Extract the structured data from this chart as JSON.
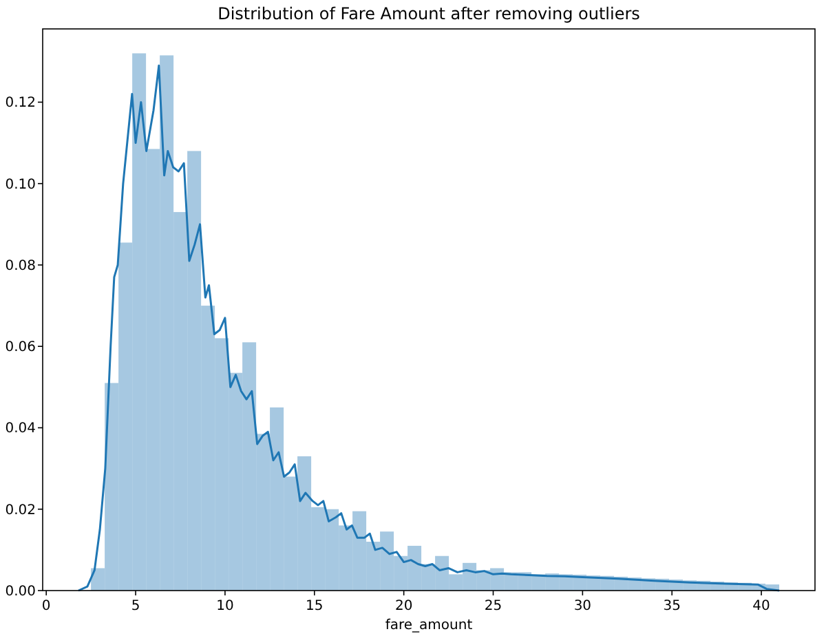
{
  "chart_data": {
    "type": "histogram",
    "title": "Distribution of Fare Amount after removing outliers",
    "xlabel": "fare_amount",
    "bins": [
      2.5,
      3.27,
      4.04,
      4.81,
      5.58,
      6.35,
      7.12,
      7.89,
      8.66,
      9.43,
      10.2,
      10.97,
      11.74,
      12.51,
      13.28,
      14.05,
      14.82,
      15.59,
      16.36,
      17.13,
      17.9,
      18.67,
      19.44,
      20.21,
      20.98,
      21.75,
      22.52,
      23.29,
      24.06,
      24.83,
      25.6,
      26.37,
      27.14,
      27.91,
      28.68,
      29.45,
      30.22,
      30.99,
      31.76,
      32.53,
      33.3,
      34.07,
      34.84,
      35.61,
      36.38,
      37.15,
      37.92,
      38.69,
      39.46,
      40.23,
      41.0
    ],
    "values": [
      0.0055,
      0.051,
      0.0855,
      0.132,
      0.1085,
      0.1315,
      0.093,
      0.108,
      0.07,
      0.062,
      0.0535,
      0.061,
      0.0385,
      0.045,
      0.028,
      0.033,
      0.0205,
      0.02,
      0.016,
      0.0195,
      0.012,
      0.0145,
      0.0085,
      0.011,
      0.0065,
      0.0085,
      0.004,
      0.0068,
      0.005,
      0.0055,
      0.0045,
      0.0045,
      0.004,
      0.0042,
      0.004,
      0.0039,
      0.0037,
      0.0036,
      0.0034,
      0.0032,
      0.003,
      0.0029,
      0.0027,
      0.0025,
      0.0024,
      0.0022,
      0.002,
      0.0019,
      0.0017,
      0.0015
    ],
    "color": "#a6c8e1",
    "series": [
      {
        "type": "line",
        "color": "#1f77b4",
        "x": [
          1.8,
          2.3,
          2.7,
          3.0,
          3.3,
          3.6,
          3.8,
          4.0,
          4.3,
          4.8,
          5.0,
          5.3,
          5.6,
          6.0,
          6.3,
          6.6,
          6.8,
          7.1,
          7.4,
          7.7,
          8.0,
          8.3,
          8.6,
          8.9,
          9.1,
          9.4,
          9.7,
          10.0,
          10.3,
          10.6,
          10.9,
          11.2,
          11.5,
          11.8,
          12.1,
          12.4,
          12.7,
          13.0,
          13.3,
          13.6,
          13.9,
          14.2,
          14.5,
          14.9,
          15.2,
          15.5,
          15.8,
          16.2,
          16.5,
          16.8,
          17.1,
          17.4,
          17.8,
          18.1,
          18.4,
          18.8,
          19.2,
          19.6,
          20.0,
          20.4,
          20.8,
          21.2,
          21.6,
          22.0,
          22.5,
          23.0,
          23.5,
          24.0,
          24.5,
          25.0,
          25.5,
          26,
          27,
          28,
          29,
          30,
          32,
          34,
          36,
          38,
          39.8,
          40.3,
          41
        ],
        "values": [
          0,
          0.001,
          0.005,
          0.015,
          0.03,
          0.06,
          0.077,
          0.08,
          0.1,
          0.122,
          0.11,
          0.12,
          0.108,
          0.118,
          0.129,
          0.102,
          0.108,
          0.104,
          0.103,
          0.105,
          0.081,
          0.085,
          0.09,
          0.072,
          0.075,
          0.063,
          0.064,
          0.067,
          0.05,
          0.053,
          0.049,
          0.047,
          0.049,
          0.036,
          0.038,
          0.039,
          0.032,
          0.034,
          0.028,
          0.029,
          0.031,
          0.022,
          0.024,
          0.022,
          0.021,
          0.022,
          0.017,
          0.018,
          0.019,
          0.015,
          0.016,
          0.013,
          0.013,
          0.014,
          0.01,
          0.0105,
          0.009,
          0.0095,
          0.007,
          0.0075,
          0.0065,
          0.006,
          0.0065,
          0.005,
          0.0055,
          0.0045,
          0.005,
          0.0045,
          0.0048,
          0.004,
          0.0042,
          0.004,
          0.0038,
          0.0036,
          0.0035,
          0.0033,
          0.0029,
          0.0024,
          0.002,
          0.0017,
          0.0015,
          0.0004,
          0
        ]
      }
    ],
    "xlim": [
      -0.2,
      43
    ],
    "ylim": [
      0,
      0.138
    ],
    "xticks": [
      0,
      5,
      10,
      15,
      20,
      25,
      30,
      35,
      40
    ],
    "yticks": [
      {
        "value": 0,
        "label": "0.00"
      },
      {
        "value": 0.02,
        "label": "0.02"
      },
      {
        "value": 0.04,
        "label": "0.04"
      },
      {
        "value": 0.06,
        "label": "0.06"
      },
      {
        "value": 0.08,
        "label": "0.08"
      },
      {
        "value": 0.1,
        "label": "0.10"
      },
      {
        "value": 0.12,
        "label": "0.12"
      }
    ]
  }
}
